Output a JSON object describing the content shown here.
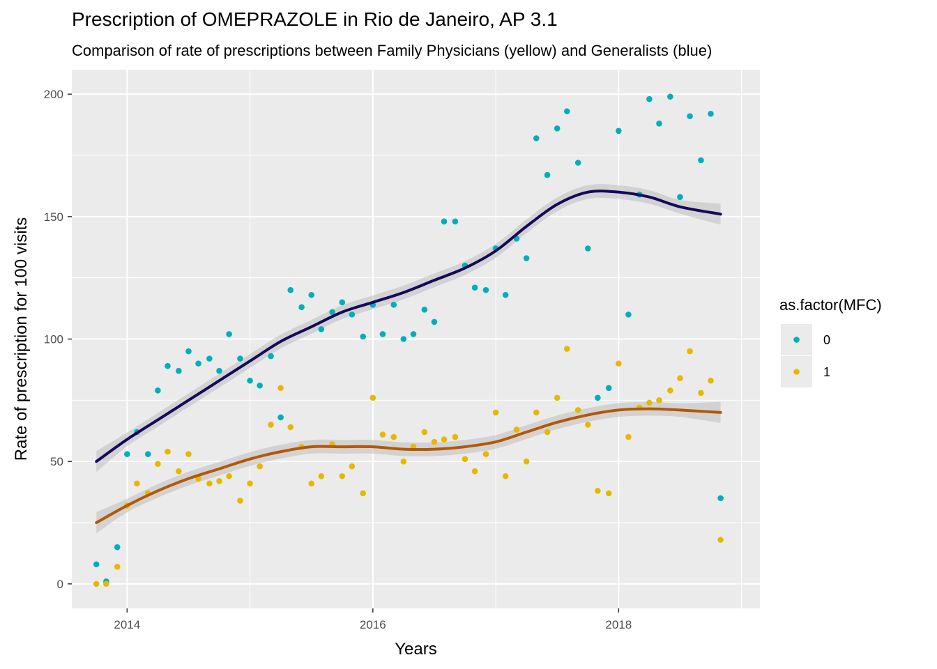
{
  "chart_data": {
    "type": "scatter",
    "title": "Prescription of OMEPRAZOLE in Rio de Janeiro, AP 3.1",
    "subtitle": "Comparison of rate of prescriptions between Family Physicians (yellow) and Generalists (blue)",
    "xlabel": "Years",
    "ylabel": "Rate of prescription for 100 visits",
    "xlim": [
      2013.55,
      2019.15
    ],
    "ylim": [
      -10,
      210
    ],
    "x_ticks": [
      2014,
      2016,
      2018
    ],
    "y_ticks": [
      0,
      50,
      100,
      150,
      200
    ],
    "grid": true,
    "legend": {
      "title": "as.factor(MFC)",
      "placement": "right"
    },
    "series": [
      {
        "name": "0",
        "color": "#00AFBB",
        "x": [
          2013.75,
          2013.83,
          2013.92,
          2014.0,
          2014.08,
          2014.17,
          2014.25,
          2014.33,
          2014.42,
          2014.5,
          2014.58,
          2014.67,
          2014.75,
          2014.83,
          2014.92,
          2015.0,
          2015.08,
          2015.17,
          2015.25,
          2015.33,
          2015.42,
          2015.5,
          2015.58,
          2015.67,
          2015.75,
          2015.83,
          2015.92,
          2016.0,
          2016.08,
          2016.17,
          2016.25,
          2016.33,
          2016.42,
          2016.5,
          2016.58,
          2016.67,
          2016.75,
          2016.83,
          2016.92,
          2017.0,
          2017.08,
          2017.17,
          2017.25,
          2017.33,
          2017.42,
          2017.5,
          2017.58,
          2017.67,
          2017.75,
          2017.83,
          2017.92,
          2018.0,
          2018.08,
          2018.17,
          2018.25,
          2018.33,
          2018.42,
          2018.5,
          2018.58,
          2018.67,
          2018.75,
          2018.83
        ],
        "values": [
          8,
          1,
          15,
          53,
          62,
          53,
          79,
          89,
          87,
          95,
          90,
          92,
          87,
          102,
          92,
          83,
          81,
          93,
          68,
          120,
          113,
          118,
          104,
          111,
          115,
          110,
          101,
          114,
          102,
          114,
          100,
          102,
          112,
          107,
          148,
          148,
          130,
          121,
          120,
          137,
          118,
          141,
          133,
          182,
          167,
          186,
          193,
          172,
          137,
          76,
          80,
          185,
          110,
          159,
          198,
          188,
          199,
          158,
          191,
          173,
          192,
          35
        ],
        "smooth": {
          "x": [
            2013.75,
            2014.0,
            2014.25,
            2014.5,
            2014.75,
            2015.0,
            2015.25,
            2015.5,
            2015.75,
            2016.0,
            2016.25,
            2016.5,
            2016.75,
            2017.0,
            2017.25,
            2017.5,
            2017.75,
            2018.0,
            2018.25,
            2018.5,
            2018.83
          ],
          "values": [
            50,
            59,
            67,
            75,
            83,
            91,
            99,
            105,
            111,
            115,
            119,
            124,
            129,
            136,
            146,
            155,
            160,
            160,
            158,
            154,
            151
          ]
        }
      },
      {
        "name": "1",
        "color": "#E7B800",
        "x": [
          2013.75,
          2013.83,
          2013.92,
          2014.0,
          2014.08,
          2014.17,
          2014.25,
          2014.33,
          2014.42,
          2014.5,
          2014.58,
          2014.67,
          2014.75,
          2014.83,
          2014.92,
          2015.0,
          2015.08,
          2015.17,
          2015.25,
          2015.33,
          2015.42,
          2015.5,
          2015.58,
          2015.67,
          2015.75,
          2015.83,
          2015.92,
          2016.0,
          2016.08,
          2016.17,
          2016.25,
          2016.33,
          2016.42,
          2016.5,
          2016.58,
          2016.67,
          2016.75,
          2016.83,
          2016.92,
          2017.0,
          2017.08,
          2017.17,
          2017.25,
          2017.33,
          2017.42,
          2017.5,
          2017.58,
          2017.67,
          2017.75,
          2017.83,
          2017.92,
          2018.0,
          2018.08,
          2018.17,
          2018.25,
          2018.33,
          2018.42,
          2018.5,
          2018.58,
          2018.67,
          2018.75,
          2018.83
        ],
        "values": [
          0,
          0,
          7,
          32,
          41,
          37,
          49,
          54,
          46,
          53,
          43,
          41,
          42,
          44,
          34,
          41,
          48,
          65,
          80,
          64,
          56,
          41,
          44,
          57,
          44,
          48,
          37,
          76,
          61,
          60,
          50,
          56,
          62,
          58,
          59,
          60,
          51,
          46,
          53,
          70,
          44,
          63,
          50,
          70,
          62,
          76,
          96,
          71,
          65,
          38,
          37,
          90,
          60,
          72,
          74,
          75,
          79,
          84,
          95,
          78,
          83,
          18
        ],
        "smooth": {
          "x": [
            2013.75,
            2014.0,
            2014.25,
            2014.5,
            2014.75,
            2015.0,
            2015.25,
            2015.5,
            2015.75,
            2016.0,
            2016.25,
            2016.5,
            2016.75,
            2017.0,
            2017.25,
            2017.5,
            2017.75,
            2018.0,
            2018.25,
            2018.5,
            2018.83
          ],
          "values": [
            25,
            32,
            38,
            43,
            47,
            51,
            54,
            56,
            56,
            56,
            55,
            55,
            56,
            58,
            62,
            66,
            69,
            71,
            71.5,
            71,
            70
          ]
        }
      }
    ]
  },
  "colors": {
    "panel": "#EBEBEB",
    "grid": "#FFFFFF",
    "line_0": "#14085A",
    "line_1": "#B35806",
    "ribbon": "#BDBDBD"
  }
}
